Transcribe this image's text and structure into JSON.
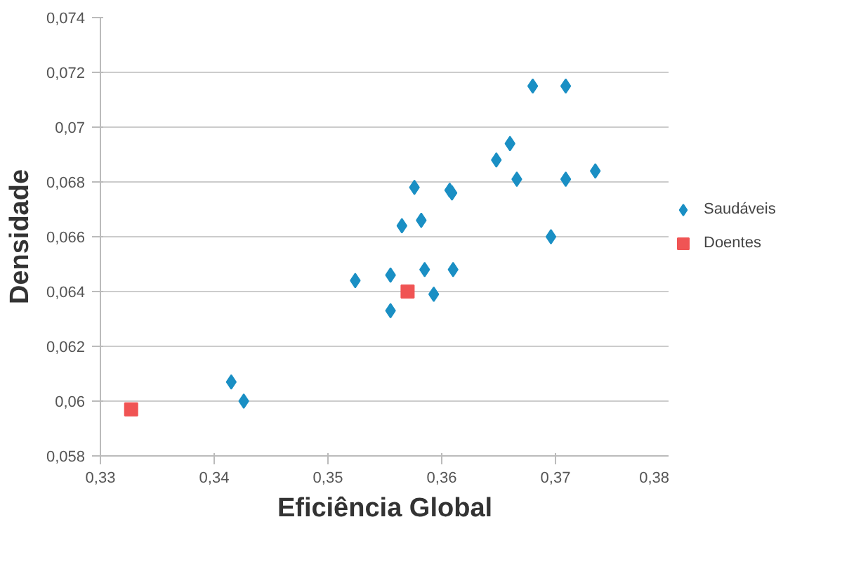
{
  "chart_data": {
    "type": "scatter",
    "xlabel": "Eficiência Global",
    "ylabel": "Densidade",
    "series": [
      {
        "name": "Saudáveis",
        "color": "#1a8fc4",
        "marker": "diamond",
        "x": [
          0.368,
          0.3709,
          0.366,
          0.3648,
          0.3666,
          0.3709,
          0.3735,
          0.3576,
          0.3607,
          0.3609,
          0.3565,
          0.3582,
          0.3696,
          0.3524,
          0.3555,
          0.3585,
          0.361,
          0.3593,
          0.3555,
          0.3415,
          0.3426
        ],
        "values": [
          0.0715,
          0.0715,
          0.0694,
          0.0688,
          0.0681,
          0.0681,
          0.0684,
          0.0678,
          0.0677,
          0.0676,
          0.0664,
          0.0666,
          0.066,
          0.0644,
          0.0646,
          0.0648,
          0.0648,
          0.0639,
          0.0633,
          0.0607,
          0.06
        ]
      },
      {
        "name": "Doentes",
        "color": "#f05454",
        "marker": "square",
        "x": [
          0.3327,
          0.357
        ],
        "values": [
          0.0597,
          0.064
        ]
      }
    ],
    "xlim": [
      0.33,
      0.38
    ],
    "xticks": [
      {
        "value": 0.33,
        "label": "0,33"
      },
      {
        "value": 0.34,
        "label": "0,34"
      },
      {
        "value": 0.35,
        "label": "0,35"
      },
      {
        "value": 0.36,
        "label": "0,36"
      },
      {
        "value": 0.37,
        "label": "0,37"
      },
      {
        "value": 0.38,
        "label": "0,38"
      }
    ],
    "ylim": [
      0.058,
      0.074
    ],
    "yticks": [
      {
        "value": 0.058,
        "label": "0,058"
      },
      {
        "value": 0.06,
        "label": "0,06"
      },
      {
        "value": 0.062,
        "label": "0,062"
      },
      {
        "value": 0.064,
        "label": "0,064"
      },
      {
        "value": 0.066,
        "label": "0,066"
      },
      {
        "value": 0.068,
        "label": "0,068"
      },
      {
        "value": 0.07,
        "label": "0,07"
      },
      {
        "value": 0.072,
        "label": "0,072"
      },
      {
        "value": 0.074,
        "label": "0,074"
      }
    ],
    "grid": "y",
    "legend": "right"
  }
}
